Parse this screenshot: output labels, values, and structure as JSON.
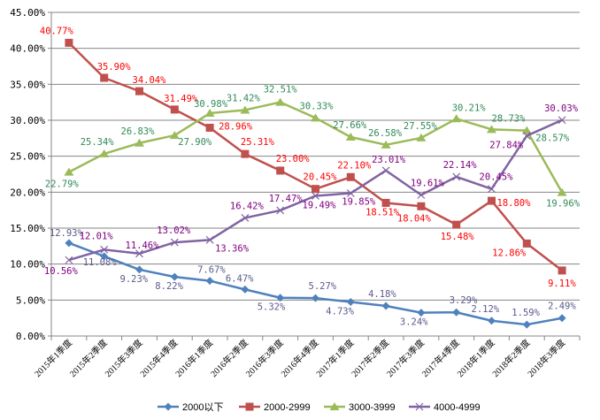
{
  "chart_data": {
    "type": "line",
    "title": "",
    "xlabel": "",
    "ylabel": "",
    "ylim": [
      0,
      45
    ],
    "y_ticks": [
      "0.00%",
      "5.00%",
      "10.00%",
      "15.00%",
      "20.00%",
      "25.00%",
      "30.00%",
      "35.00%",
      "40.00%",
      "45.00%"
    ],
    "grid": true,
    "legend_position": "bottom",
    "categories": [
      "2015年1季度",
      "2015年2季度",
      "2015年3季度",
      "2015年4季度",
      "2016年1季度",
      "2016年2季度",
      "2016年3季度",
      "2016年4季度",
      "2017年1季度",
      "2017年2季度",
      "2017年3季度",
      "2017年4季度",
      "2018年1季度",
      "2018年2季度",
      "2018年3季度"
    ],
    "series": [
      {
        "name": "2000以下",
        "color": "#4f81bd",
        "label_color": "#5a5a8c",
        "marker": "diamond",
        "values": [
          12.93,
          11.08,
          9.23,
          8.22,
          7.67,
          6.47,
          5.32,
          5.27,
          4.73,
          4.18,
          3.24,
          3.29,
          2.12,
          1.59,
          2.49
        ],
        "labels": [
          "12.93%",
          "11.08%",
          "9.23%",
          "8.22%",
          "7.67%",
          "6.47%",
          "5.32%",
          "5.27%",
          "4.73%",
          "4.18%",
          "3.24%",
          "3.29%",
          "2.12%",
          "1.59%",
          "2.49%"
        ]
      },
      {
        "name": "2000-2999",
        "color": "#c0504d",
        "label_color": "#ff0000",
        "marker": "square",
        "values": [
          40.77,
          35.9,
          34.04,
          31.49,
          28.96,
          25.31,
          23.0,
          20.45,
          22.1,
          18.51,
          18.04,
          15.48,
          18.8,
          12.86,
          9.11
        ],
        "labels": [
          "40.77%",
          "35.90%",
          "34.04%",
          "31.49%",
          "28.96%",
          "25.31%",
          "23.00%",
          "20.45%",
          "22.10%",
          "18.51%",
          "18.04%",
          "15.48%",
          "18.80%",
          "12.86%",
          "9.11%"
        ]
      },
      {
        "name": "3000-3999",
        "color": "#9bbb59",
        "label_color": "#2e8b57",
        "marker": "triangle",
        "values": [
          22.79,
          25.34,
          26.83,
          27.9,
          30.98,
          31.42,
          32.51,
          30.33,
          27.66,
          26.58,
          27.55,
          30.21,
          28.73,
          28.57,
          19.96
        ],
        "labels": [
          "22.79%",
          "25.34%",
          "26.83%",
          "27.90%",
          "30.98%",
          "31.42%",
          "32.51%",
          "30.33%",
          "27.66%",
          "26.58%",
          "27.55%",
          "30.21%",
          "28.73%",
          "28.57%",
          "19.96%"
        ]
      },
      {
        "name": "4000-4999",
        "color": "#8064a2",
        "label_color": "#800080",
        "marker": "x",
        "values": [
          10.56,
          12.01,
          11.46,
          13.02,
          13.36,
          16.42,
          17.47,
          19.49,
          19.85,
          23.01,
          19.61,
          22.14,
          20.45,
          27.84,
          30.03
        ],
        "labels": [
          "10.56%",
          "12.01%",
          "11.46%",
          "13.02%",
          "13.36%",
          "16.42%",
          "17.47%",
          "19.49%",
          "19.85%",
          "23.01%",
          "19.61%",
          "22.14%",
          "20.45%",
          "27.84%",
          "30.03%"
        ]
      }
    ]
  }
}
